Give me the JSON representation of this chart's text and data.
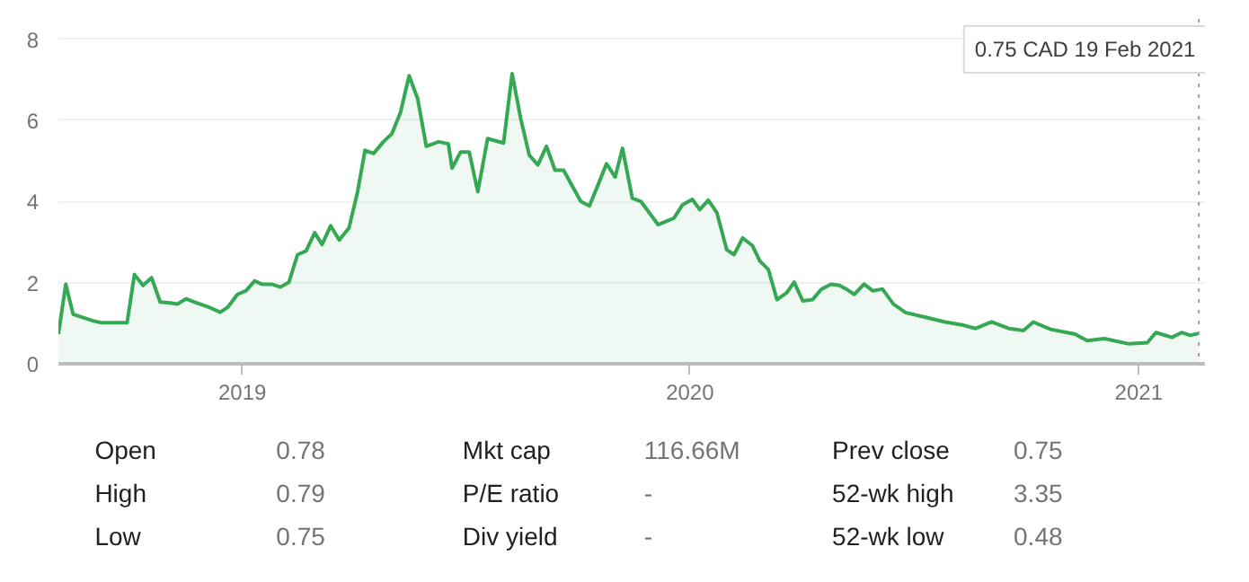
{
  "chart_data": [
    {
      "type": "area",
      "x": [
        "2018-08-04",
        "2018-08-10",
        "2018-08-16",
        "2018-09-01",
        "2018-09-08",
        "2018-09-29",
        "2018-10-05",
        "2018-10-12",
        "2018-10-19",
        "2018-10-26",
        "2018-11-03",
        "2018-11-09",
        "2018-11-16",
        "2018-11-23",
        "2018-12-05",
        "2018-12-14",
        "2018-12-20",
        "2018-12-28",
        "2019-01-04",
        "2019-01-11",
        "2019-01-17",
        "2019-01-25",
        "2019-02-01",
        "2019-02-08",
        "2019-02-15",
        "2019-02-22",
        "2019-03-01",
        "2019-03-07",
        "2019-03-14",
        "2019-03-21",
        "2019-03-29",
        "2019-04-05",
        "2019-04-11",
        "2019-04-18",
        "2019-04-26",
        "2019-05-03",
        "2019-05-10",
        "2019-05-17",
        "2019-05-24",
        "2019-05-31",
        "2019-06-10",
        "2019-06-18",
        "2019-06-21",
        "2019-06-28",
        "2019-07-05",
        "2019-07-12",
        "2019-07-20",
        "2019-08-02",
        "2019-08-09",
        "2019-08-16",
        "2019-08-23",
        "2019-08-30",
        "2019-09-06",
        "2019-09-13",
        "2019-09-20",
        "2019-09-26",
        "2019-10-04",
        "2019-10-11",
        "2019-10-17",
        "2019-10-25",
        "2019-11-01",
        "2019-11-07",
        "2019-11-15",
        "2019-11-22",
        "2019-12-06",
        "2019-12-19",
        "2019-12-26",
        "2020-01-03",
        "2020-01-09",
        "2020-01-16",
        "2020-01-23",
        "2020-01-31",
        "2020-02-06",
        "2020-02-13",
        "2020-02-21",
        "2020-02-27",
        "2020-03-05",
        "2020-03-12",
        "2020-03-20",
        "2020-03-26",
        "2020-04-02",
        "2020-04-10",
        "2020-04-17",
        "2020-04-25",
        "2020-05-02",
        "2020-05-08",
        "2020-05-14",
        "2020-05-22",
        "2020-05-29",
        "2020-06-06",
        "2020-06-15",
        "2020-06-25",
        "2020-07-12",
        "2020-07-27",
        "2020-08-11",
        "2020-08-21",
        "2020-09-03",
        "2020-09-17",
        "2020-09-29",
        "2020-10-07",
        "2020-10-21",
        "2020-11-10",
        "2020-11-20",
        "2020-12-04",
        "2020-12-24",
        "2021-01-08",
        "2021-01-15",
        "2021-01-28",
        "2021-02-05",
        "2021-02-12",
        "2021-02-19"
      ],
      "series": [
        {
          "color": "#34a853",
          "values": [
            0.73,
            1.96,
            1.22,
            1.06,
            1.01,
            1.01,
            2.2,
            1.93,
            2.12,
            1.52,
            1.5,
            1.47,
            1.6,
            1.52,
            1.39,
            1.27,
            1.39,
            1.71,
            1.8,
            2.04,
            1.96,
            1.96,
            1.89,
            2.01,
            2.69,
            2.78,
            3.23,
            2.94,
            3.4,
            3.05,
            3.35,
            4.24,
            5.26,
            5.18,
            5.47,
            5.67,
            6.2,
            7.1,
            6.53,
            5.36,
            5.47,
            5.42,
            4.82,
            5.22,
            5.22,
            4.24,
            5.55,
            5.44,
            7.15,
            6.04,
            5.14,
            4.9,
            5.36,
            4.77,
            4.77,
            4.44,
            4.0,
            3.89,
            4.33,
            4.93,
            4.6,
            5.31,
            4.08,
            4.0,
            3.43,
            3.59,
            3.92,
            4.05,
            3.8,
            4.03,
            3.72,
            2.81,
            2.69,
            3.1,
            2.91,
            2.53,
            2.32,
            1.58,
            1.75,
            2.01,
            1.55,
            1.58,
            1.83,
            1.96,
            1.93,
            1.83,
            1.71,
            1.96,
            1.8,
            1.84,
            1.47,
            1.26,
            1.14,
            1.03,
            0.95,
            0.87,
            1.03,
            0.87,
            0.82,
            1.03,
            0.85,
            0.73,
            0.57,
            0.62,
            0.49,
            0.52,
            0.77,
            0.65,
            0.77,
            0.7,
            0.75
          ]
        }
      ],
      "xlim": [
        "2018-08-04",
        "2021-02-24"
      ],
      "xticks": [
        {
          "value": "2019-01-01",
          "label": "2019"
        },
        {
          "value": "2020-01-01",
          "label": "2020"
        },
        {
          "value": "2021-01-01",
          "label": "2021"
        }
      ],
      "ylim": [
        0,
        8.5
      ],
      "yticks": [
        0,
        2,
        4,
        6,
        8
      ],
      "grid": "y",
      "ref_lines": [
        {
          "axis": "x",
          "value": "2021-02-19",
          "color": "#9e9e9e",
          "line_style": "dotted"
        }
      ],
      "annotations": [
        "0.75 CAD  19 Feb 2021"
      ]
    },
    {
      "type": "other",
      "annotations": [
        "Open",
        "0.78",
        "Mkt cap",
        "116.66M",
        "Prev close",
        "0.75",
        "High",
        "0.79",
        "P/E ratio",
        "-",
        "52-wk high",
        "3.35",
        "Low",
        "0.75",
        "Div yield",
        "-",
        "52-wk low",
        "0.48"
      ]
    }
  ]
}
